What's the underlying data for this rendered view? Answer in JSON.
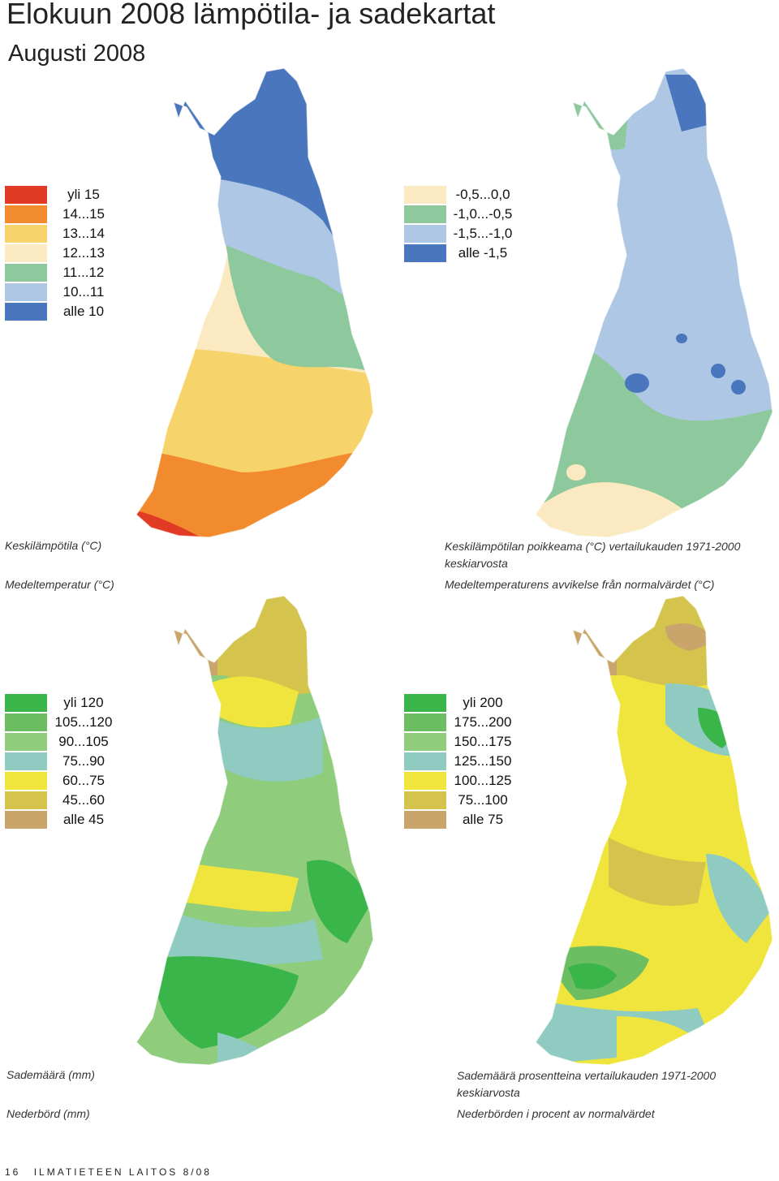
{
  "page": {
    "title": "Elokuun  2008 lämpötila- ja sadekartat",
    "subtitle": "Augusti 2008"
  },
  "legends": {
    "mean_temperature": [
      {
        "label": "yli 15",
        "color": "#e23b25"
      },
      {
        "label": "14...15",
        "color": "#f28a2e"
      },
      {
        "label": "13...14",
        "color": "#f6d46b"
      },
      {
        "label": "12...13",
        "color": "#fbeac1"
      },
      {
        "label": "11...12",
        "color": "#8ec99e"
      },
      {
        "label": "10...11",
        "color": "#aec7e4"
      },
      {
        "label": "alle 10",
        "color": "#4a76bd"
      }
    ],
    "temperature_deviation": [
      {
        "label": "-0,5...0,0",
        "color": "#fbeac1"
      },
      {
        "label": "-1,0...-0,5",
        "color": "#8ec99e"
      },
      {
        "label": "-1,5...-1,0",
        "color": "#aec7e4"
      },
      {
        "label": "alle -1,5",
        "color": "#4a76bd"
      }
    ],
    "precipitation": [
      {
        "label": "yli 120",
        "color": "#39b54a"
      },
      {
        "label": "105...120",
        "color": "#6dbd63"
      },
      {
        "label": "90...105",
        "color": "#8fcc7c"
      },
      {
        "label": "75...90",
        "color": "#8fcbc0"
      },
      {
        "label": "60...75",
        "color": "#f0e53c"
      },
      {
        "label": "45...60",
        "color": "#d4c34c"
      },
      {
        "label": "alle 45",
        "color": "#c9a46b"
      }
    ],
    "precipitation_percent": [
      {
        "label": "yli 200",
        "color": "#39b54a"
      },
      {
        "label": "175...200",
        "color": "#6dbd63"
      },
      {
        "label": "150...175",
        "color": "#8fcc7c"
      },
      {
        "label": "125...150",
        "color": "#8fcbc0"
      },
      {
        "label": "100...125",
        "color": "#f0e53c"
      },
      {
        "label": "75...100",
        "color": "#d4c34c"
      },
      {
        "label": "alle 75",
        "color": "#c9a46b"
      }
    ]
  },
  "captions": {
    "mean_temperature_fi": "Keskilämpötila (°C)",
    "mean_temperature_sv": "Medeltemperatur (°C)",
    "deviation_fi": "Keskilämpötilan poikkeama (°C) vertailukauden 1971-2000 keskiarvosta",
    "deviation_sv": "Medeltemperaturens avvikelse från normalvärdet (°C)",
    "precipitation_fi": "Sademäärä (mm)",
    "precipitation_sv": "Nederbörd (mm)",
    "precipitation_percent_fi": "Sademäärä prosentteina vertailukauden 1971-2000 keskiarvosta",
    "precipitation_percent_sv": "Nederbörden i procent av normalvärdet"
  },
  "footer": {
    "page_number": "16",
    "publication": "ILMATIETEEN LAITOS 8/08"
  }
}
